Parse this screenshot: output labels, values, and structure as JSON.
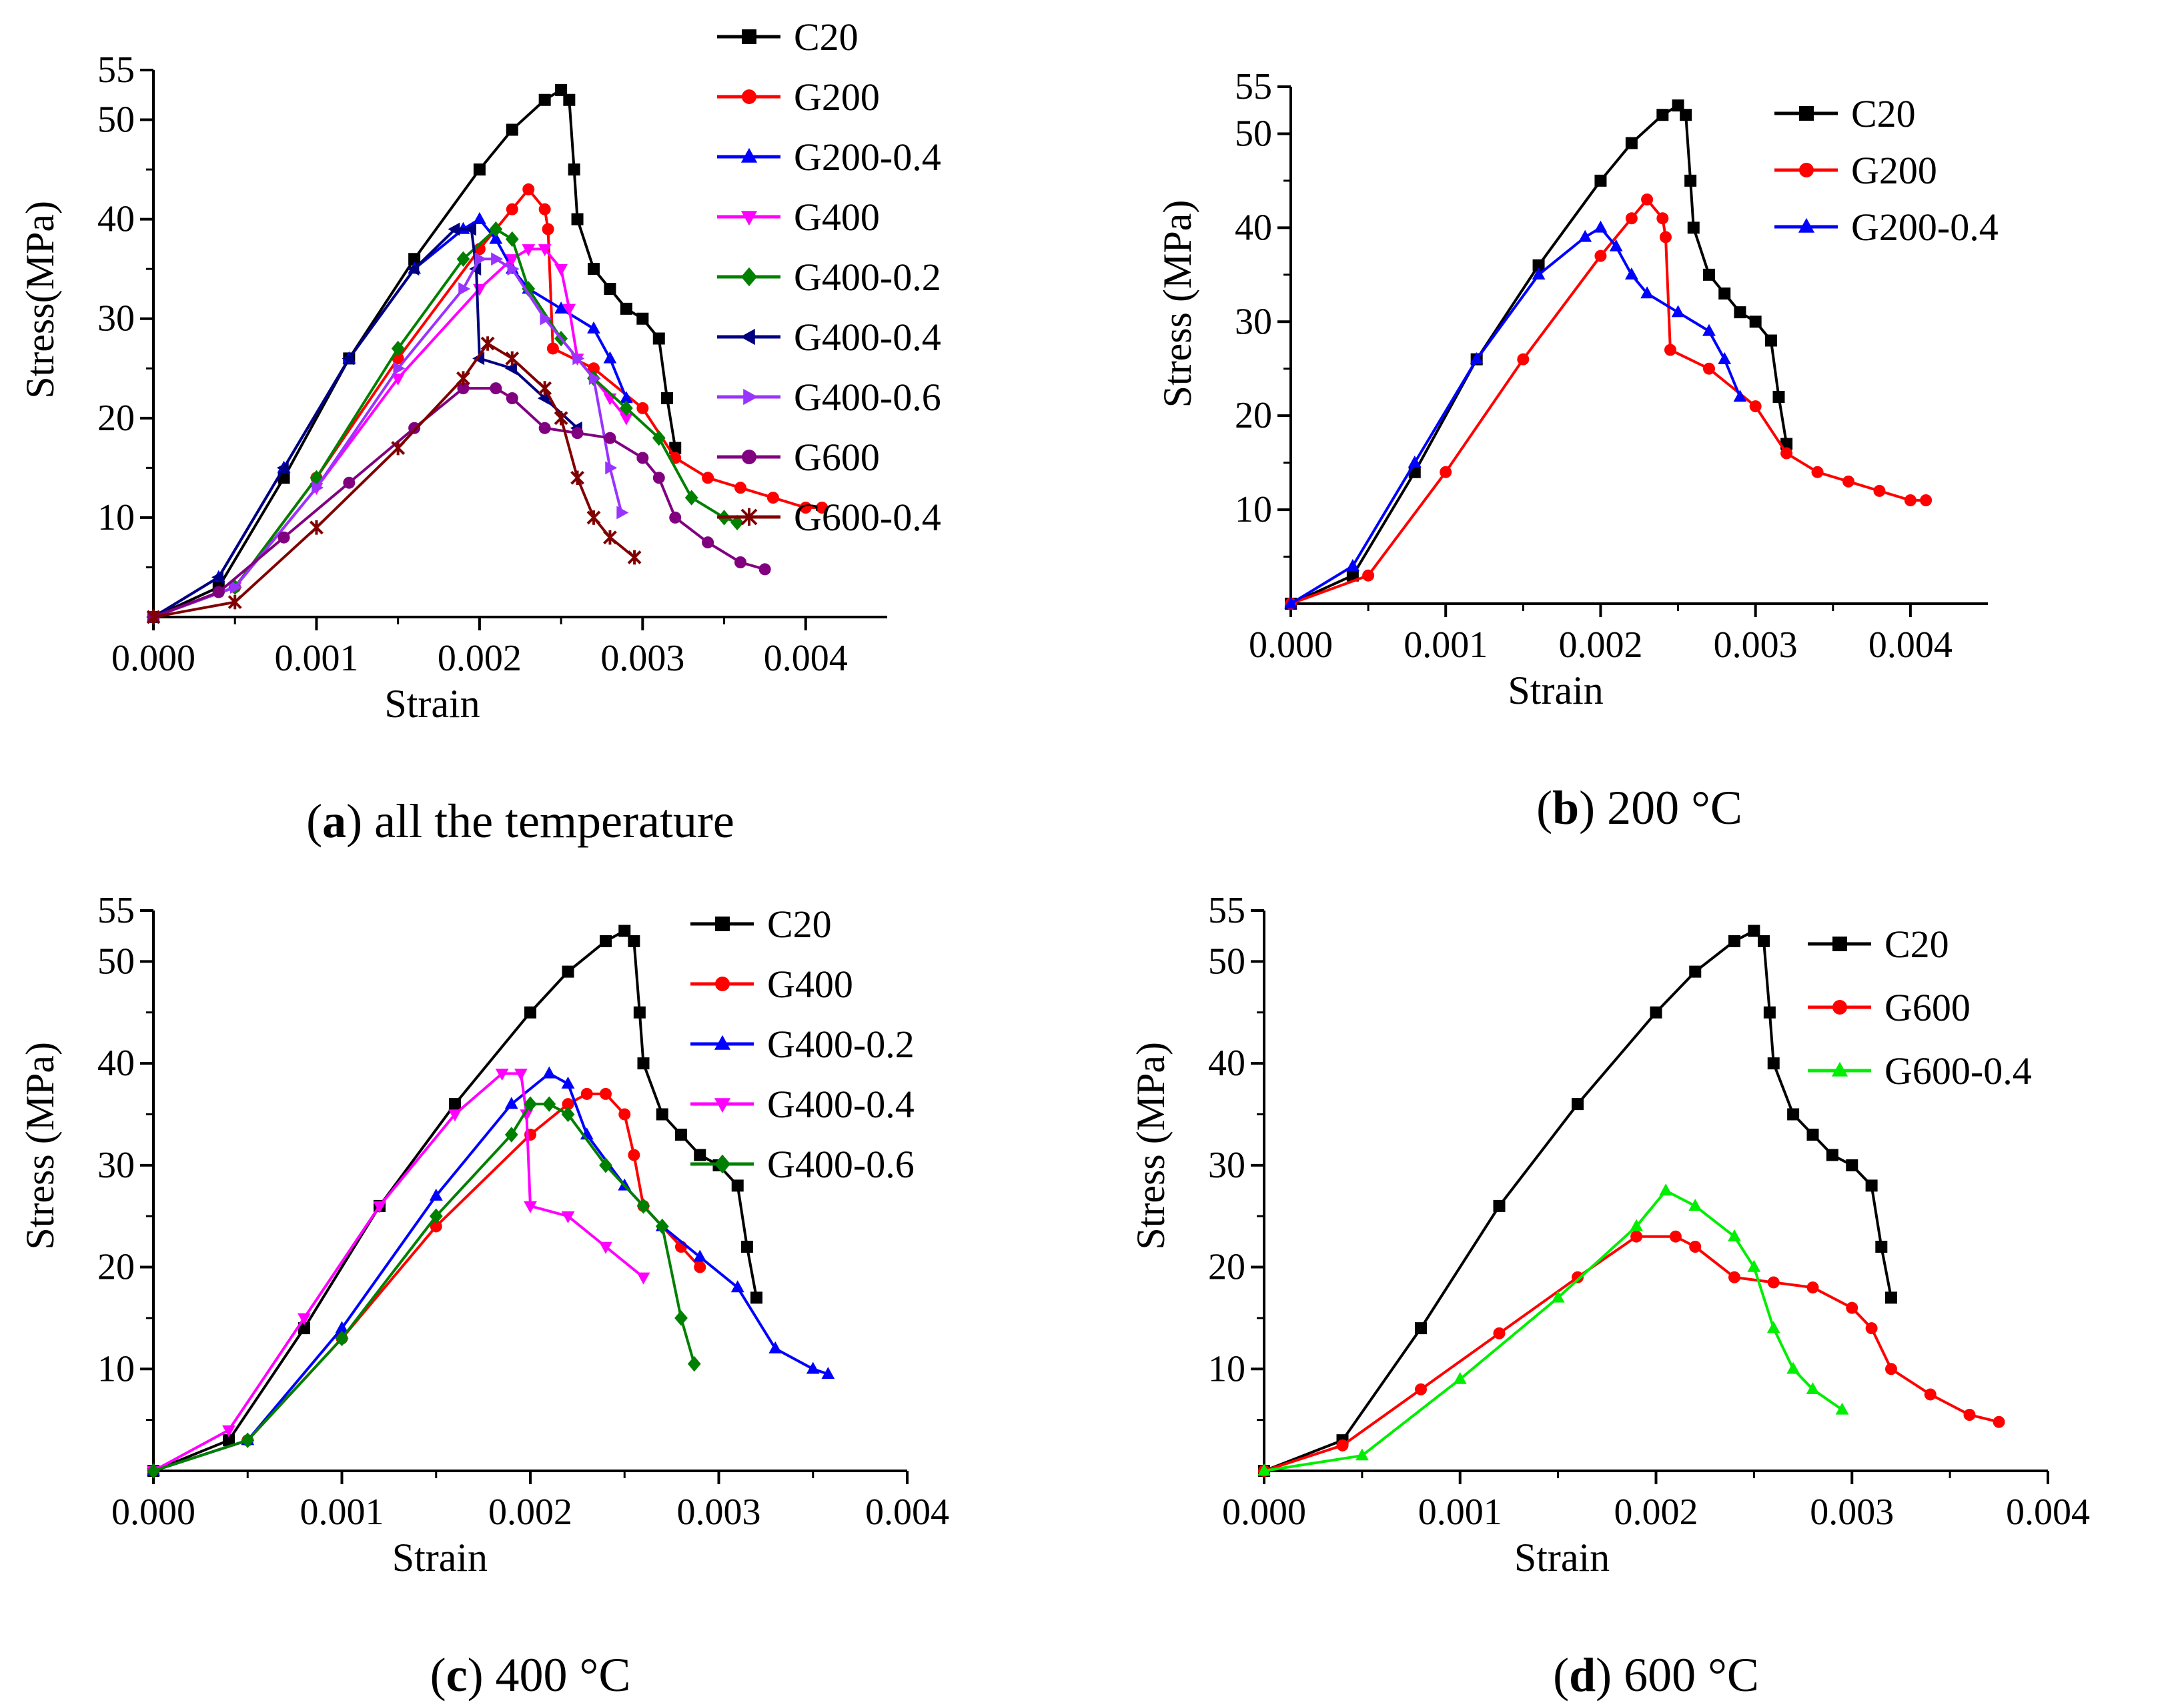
{
  "chart_data": [
    {
      "type": "line",
      "caption": {
        "letter": "a",
        "text": "all the temperature"
      },
      "xlabel": "Strain",
      "ylabel": "Stress(MPa)",
      "xlim": [
        0,
        0.0045
      ],
      "ylim": [
        0,
        55
      ],
      "xticks": [
        "0.000",
        "0.001",
        "0.002",
        "0.003",
        "0.004"
      ],
      "yticks": [
        "10",
        "20",
        "30",
        "40",
        "50",
        "55"
      ],
      "series": [
        {
          "name": "C20",
          "color": "#000000",
          "marker": "square",
          "x": [
            0,
            0.0004,
            0.0008,
            0.0012,
            0.0016,
            0.002,
            0.0022,
            0.0024,
            0.0025,
            0.00255,
            0.00258,
            0.0026,
            0.0027,
            0.0028,
            0.0029,
            0.003,
            0.0031,
            0.00315,
            0.0032
          ],
          "y": [
            0,
            3,
            14,
            26,
            36,
            45,
            49,
            52,
            53,
            52,
            45,
            40,
            35,
            33,
            31,
            30,
            28,
            22,
            17
          ]
        },
        {
          "name": "G200",
          "color": "#ff0000",
          "marker": "circle",
          "x": [
            0,
            0.0005,
            0.001,
            0.0015,
            0.002,
            0.0022,
            0.0023,
            0.0024,
            0.00242,
            0.00245,
            0.0027,
            0.003,
            0.0032,
            0.0034,
            0.0036,
            0.0038,
            0.004,
            0.0041
          ],
          "y": [
            0,
            3,
            14,
            26,
            37,
            41,
            43,
            41,
            39,
            27,
            25,
            21,
            16,
            14,
            13,
            12,
            11,
            11
          ]
        },
        {
          "name": "G200-0.4",
          "color": "#0000ff",
          "marker": "triangle-up",
          "x": [
            0,
            0.0004,
            0.0008,
            0.0012,
            0.0016,
            0.0019,
            0.002,
            0.0021,
            0.0022,
            0.0023,
            0.0025,
            0.0027,
            0.0028,
            0.0029
          ],
          "y": [
            0,
            4,
            15,
            26,
            35,
            39,
            40,
            38,
            35,
            33,
            31,
            29,
            26,
            22
          ]
        },
        {
          "name": "G400",
          "color": "#ff00ff",
          "marker": "triangle-down",
          "x": [
            0,
            0.0005,
            0.001,
            0.0015,
            0.002,
            0.0022,
            0.0023,
            0.0024,
            0.0025,
            0.00255,
            0.0026,
            0.0028,
            0.0029
          ],
          "y": [
            0,
            3,
            13,
            24,
            33,
            36,
            37,
            37,
            35,
            31,
            26,
            22,
            20
          ]
        },
        {
          "name": "G400-0.2",
          "color": "#008000",
          "marker": "diamond",
          "x": [
            0,
            0.0005,
            0.001,
            0.0015,
            0.0019,
            0.0021,
            0.0022,
            0.0023,
            0.0025,
            0.0027,
            0.0029,
            0.0031,
            0.0033,
            0.0035,
            0.00358
          ],
          "y": [
            0,
            3,
            14,
            27,
            36,
            39,
            38,
            33,
            28,
            24,
            21,
            18,
            12,
            10,
            9.5
          ]
        },
        {
          "name": "G400-0.4",
          "color": "#000080",
          "marker": "triangle-left",
          "x": [
            0,
            0.0004,
            0.0008,
            0.0012,
            0.0016,
            0.00185,
            0.00195,
            0.00198,
            0.002,
            0.0022,
            0.0024,
            0.0026
          ],
          "y": [
            0,
            4,
            15,
            26,
            35,
            39,
            39,
            35,
            26,
            25,
            22,
            19
          ]
        },
        {
          "name": "G400-0.6",
          "color": "#9933ff",
          "marker": "triangle-right",
          "x": [
            0,
            0.0005,
            0.001,
            0.0015,
            0.0019,
            0.002,
            0.0021,
            0.0022,
            0.0024,
            0.0026,
            0.0027,
            0.0028,
            0.00287
          ],
          "y": [
            0,
            3,
            13,
            25,
            33,
            36,
            36,
            35,
            30,
            26,
            24,
            15,
            10.5
          ]
        },
        {
          "name": "G600",
          "color": "#800080",
          "marker": "circle",
          "x": [
            0,
            0.0004,
            0.0008,
            0.0012,
            0.0016,
            0.0019,
            0.0021,
            0.0022,
            0.0024,
            0.0026,
            0.0028,
            0.003,
            0.0031,
            0.0032,
            0.0034,
            0.0036,
            0.00375
          ],
          "y": [
            0,
            2.5,
            8,
            13.5,
            19,
            23,
            23,
            22,
            19,
            18.5,
            18,
            16,
            14,
            10,
            7.5,
            5.5,
            4.8
          ]
        },
        {
          "name": "G600-0.4",
          "color": "#800000",
          "marker": "star",
          "x": [
            0,
            0.0005,
            0.001,
            0.0015,
            0.0019,
            0.00205,
            0.0022,
            0.0024,
            0.0025,
            0.0026,
            0.0027,
            0.0028,
            0.00295
          ],
          "y": [
            0,
            1.5,
            9,
            17,
            24,
            27.5,
            26,
            23,
            20,
            14,
            10,
            8,
            6
          ]
        }
      ]
    },
    {
      "type": "line",
      "caption": {
        "letter": "b",
        "text": "200 °C"
      },
      "xlabel": "Strain",
      "ylabel": "Stress (MPa)",
      "xlim": [
        0,
        0.0045
      ],
      "ylim": [
        0,
        55
      ],
      "xticks": [
        "0.000",
        "0.001",
        "0.002",
        "0.003",
        "0.004"
      ],
      "yticks": [
        "10",
        "20",
        "30",
        "40",
        "50",
        "55"
      ],
      "series": [
        {
          "name": "C20",
          "color": "#000000",
          "marker": "square",
          "x": [
            0,
            0.0004,
            0.0008,
            0.0012,
            0.0016,
            0.002,
            0.0022,
            0.0024,
            0.0025,
            0.00255,
            0.00258,
            0.0026,
            0.0027,
            0.0028,
            0.0029,
            0.003,
            0.0031,
            0.00315,
            0.0032
          ],
          "y": [
            0,
            3,
            14,
            26,
            36,
            45,
            49,
            52,
            53,
            52,
            45,
            40,
            35,
            33,
            31,
            30,
            28,
            22,
            17
          ]
        },
        {
          "name": "G200",
          "color": "#ff0000",
          "marker": "circle",
          "x": [
            0,
            0.0005,
            0.001,
            0.0015,
            0.002,
            0.0022,
            0.0023,
            0.0024,
            0.00242,
            0.00245,
            0.0027,
            0.003,
            0.0032,
            0.0034,
            0.0036,
            0.0038,
            0.004,
            0.0041
          ],
          "y": [
            0,
            3,
            14,
            26,
            37,
            41,
            43,
            41,
            39,
            27,
            25,
            21,
            16,
            14,
            13,
            12,
            11,
            11
          ]
        },
        {
          "name": "G200-0.4",
          "color": "#0000ff",
          "marker": "triangle-up",
          "x": [
            0,
            0.0004,
            0.0008,
            0.0012,
            0.0016,
            0.0019,
            0.002,
            0.0021,
            0.0022,
            0.0023,
            0.0025,
            0.0027,
            0.0028,
            0.0029
          ],
          "y": [
            0,
            4,
            15,
            26,
            35,
            39,
            40,
            38,
            35,
            33,
            31,
            29,
            26,
            22
          ]
        }
      ]
    },
    {
      "type": "line",
      "caption": {
        "letter": "c",
        "text": "400 °C"
      },
      "xlabel": "Strain",
      "ylabel": "Stress (MPa)",
      "xlim": [
        0,
        0.004
      ],
      "ylim": [
        0,
        55
      ],
      "xticks": [
        "0.000",
        "0.001",
        "0.002",
        "0.003",
        "0.004"
      ],
      "yticks": [
        "10",
        "20",
        "30",
        "40",
        "50",
        "55"
      ],
      "series": [
        {
          "name": "C20",
          "color": "#000000",
          "marker": "square",
          "x": [
            0,
            0.0004,
            0.0008,
            0.0012,
            0.0016,
            0.002,
            0.0022,
            0.0024,
            0.0025,
            0.00255,
            0.00258,
            0.0026,
            0.0027,
            0.0028,
            0.0029,
            0.003,
            0.0031,
            0.00315,
            0.0032
          ],
          "y": [
            0,
            3,
            14,
            26,
            36,
            45,
            49,
            52,
            53,
            52,
            45,
            40,
            35,
            33,
            31,
            30,
            28,
            22,
            17
          ]
        },
        {
          "name": "G400",
          "color": "#ff0000",
          "marker": "circle",
          "x": [
            0,
            0.0005,
            0.001,
            0.0015,
            0.002,
            0.0022,
            0.0023,
            0.0024,
            0.0025,
            0.00255,
            0.0026,
            0.0028,
            0.0029
          ],
          "y": [
            0,
            3,
            13,
            24,
            33,
            36,
            37,
            37,
            35,
            31,
            26,
            22,
            20
          ]
        },
        {
          "name": "G400-0.2",
          "color": "#0000ff",
          "marker": "triangle-up",
          "x": [
            0,
            0.0005,
            0.001,
            0.0015,
            0.0019,
            0.0021,
            0.0022,
            0.0023,
            0.0025,
            0.0027,
            0.0029,
            0.0031,
            0.0033,
            0.0035,
            0.00358
          ],
          "y": [
            0,
            3,
            14,
            27,
            36,
            39,
            38,
            33,
            28,
            24,
            21,
            18,
            12,
            10,
            9.5
          ]
        },
        {
          "name": "G400-0.4",
          "color": "#ff00ff",
          "marker": "triangle-down",
          "x": [
            0,
            0.0004,
            0.0008,
            0.0012,
            0.0016,
            0.00185,
            0.00195,
            0.00198,
            0.002,
            0.0022,
            0.0024,
            0.0026
          ],
          "y": [
            0,
            4,
            15,
            26,
            35,
            39,
            39,
            35,
            26,
            25,
            22,
            19
          ]
        },
        {
          "name": "G400-0.6",
          "color": "#008000",
          "marker": "diamond",
          "x": [
            0,
            0.0005,
            0.001,
            0.0015,
            0.0019,
            0.002,
            0.0021,
            0.0022,
            0.0024,
            0.0026,
            0.0027,
            0.0028,
            0.00287
          ],
          "y": [
            0,
            3,
            13,
            25,
            33,
            36,
            36,
            35,
            30,
            26,
            24,
            15,
            10.5
          ]
        }
      ]
    },
    {
      "type": "line",
      "caption": {
        "letter": "d",
        "text": "600 °C"
      },
      "xlabel": "Strain",
      "ylabel": "Stress (MPa)",
      "xlim": [
        0,
        0.004
      ],
      "ylim": [
        0,
        55
      ],
      "xticks": [
        "0.000",
        "0.001",
        "0.002",
        "0.003",
        "0.004"
      ],
      "yticks": [
        "10",
        "20",
        "30",
        "40",
        "50",
        "55"
      ],
      "series": [
        {
          "name": "C20",
          "color": "#000000",
          "marker": "square",
          "x": [
            0,
            0.0004,
            0.0008,
            0.0012,
            0.0016,
            0.002,
            0.0022,
            0.0024,
            0.0025,
            0.00255,
            0.00258,
            0.0026,
            0.0027,
            0.0028,
            0.0029,
            0.003,
            0.0031,
            0.00315,
            0.0032
          ],
          "y": [
            0,
            3,
            14,
            26,
            36,
            45,
            49,
            52,
            53,
            52,
            45,
            40,
            35,
            33,
            31,
            30,
            28,
            22,
            17
          ]
        },
        {
          "name": "G600",
          "color": "#ff0000",
          "marker": "circle",
          "x": [
            0,
            0.0004,
            0.0008,
            0.0012,
            0.0016,
            0.0019,
            0.0021,
            0.0022,
            0.0024,
            0.0026,
            0.0028,
            0.003,
            0.0031,
            0.0032,
            0.0034,
            0.0036,
            0.00375
          ],
          "y": [
            0,
            2.5,
            8,
            13.5,
            19,
            23,
            23,
            22,
            19,
            18.5,
            18,
            16,
            14,
            10,
            7.5,
            5.5,
            4.8
          ]
        },
        {
          "name": "G600-0.4",
          "color": "#00ee00",
          "marker": "triangle-up",
          "x": [
            0,
            0.0005,
            0.001,
            0.0015,
            0.0019,
            0.00205,
            0.0022,
            0.0024,
            0.0025,
            0.0026,
            0.0027,
            0.0028,
            0.00295
          ],
          "y": [
            0,
            1.5,
            9,
            17,
            24,
            27.5,
            26,
            23,
            20,
            14,
            10,
            8,
            6
          ]
        }
      ]
    }
  ]
}
